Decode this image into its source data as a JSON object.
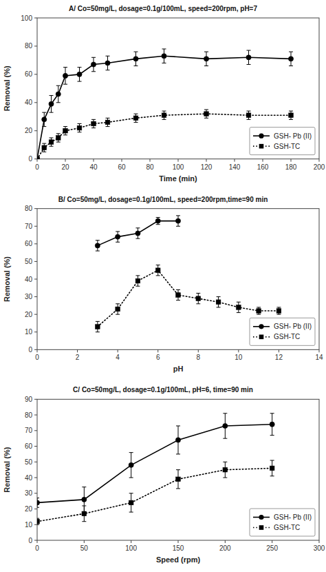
{
  "chart_data": [
    {
      "type": "line",
      "title": "A/ Co=50mg/L, dosage=0.1g/100mL, speed=200rpm, pH=7",
      "xlabel": "Time (min)",
      "ylabel": "Removal (%)",
      "xlim": [
        0,
        200
      ],
      "ylim": [
        0,
        100
      ],
      "xticks": [
        0,
        20,
        40,
        60,
        80,
        100,
        120,
        140,
        160,
        180,
        200
      ],
      "yticks": [
        0,
        20,
        40,
        60,
        80,
        100
      ],
      "grid": false,
      "legend": "lower right",
      "series": [
        {
          "name": "GSH- Pb (II)",
          "color": "#000000",
          "marker": "circle",
          "line_style": "solid",
          "x": [
            0,
            5,
            10,
            15,
            20,
            30,
            40,
            50,
            70,
            90,
            120,
            150,
            180
          ],
          "values": [
            0,
            28,
            39,
            46,
            59,
            60,
            67,
            68,
            71,
            73,
            71,
            72,
            71
          ],
          "errors": [
            0,
            5,
            6,
            6,
            6,
            5,
            5,
            5,
            5,
            5,
            5,
            5,
            5
          ]
        },
        {
          "name": "GSH-TC",
          "color": "#000000",
          "marker": "square",
          "line_style": "dotted",
          "x": [
            0,
            5,
            10,
            15,
            20,
            30,
            40,
            50,
            70,
            90,
            120,
            150,
            180
          ],
          "values": [
            0,
            8,
            12,
            15,
            20,
            22,
            25,
            26,
            29,
            31,
            32,
            31,
            31
          ],
          "errors": [
            0,
            3,
            3,
            3,
            3,
            3,
            3,
            3,
            3,
            3,
            3,
            3,
            3
          ]
        }
      ]
    },
    {
      "type": "line",
      "title": "B/ Co=50mg/L, dosage=0.1g/100mL, speed=200rpm,time=90 min",
      "xlabel": "pH",
      "ylabel": "Removal (%)",
      "xlim": [
        0,
        14
      ],
      "ylim": [
        0,
        80
      ],
      "xticks": [
        0,
        2,
        4,
        6,
        8,
        10,
        12,
        14
      ],
      "yticks": [
        0,
        10,
        20,
        30,
        40,
        50,
        60,
        70,
        80
      ],
      "grid": false,
      "legend": "lower right",
      "series": [
        {
          "name": "GSH- Pb (II)",
          "color": "#000000",
          "marker": "circle",
          "line_style": "solid",
          "x": [
            3,
            4,
            5,
            6,
            7
          ],
          "values": [
            59,
            64,
            66,
            73,
            73
          ],
          "errors": [
            3,
            3,
            3,
            2,
            3
          ]
        },
        {
          "name": "GSH-TC",
          "color": "#000000",
          "marker": "square",
          "line_style": "dotted",
          "x": [
            3,
            4,
            5,
            6,
            7,
            8,
            9,
            10,
            11,
            12
          ],
          "values": [
            13,
            23,
            39,
            45,
            31,
            29,
            27,
            24,
            22,
            22
          ],
          "errors": [
            3,
            3,
            3,
            3,
            3,
            3,
            3,
            3,
            2,
            2
          ]
        }
      ]
    },
    {
      "type": "line",
      "title": "C/ Co=50mg/L, dosage=0.1g/100mL, pH=6, time=90 min",
      "xlabel": "Speed (rpm)",
      "ylabel": "Removal (%)",
      "xlim": [
        0,
        300
      ],
      "ylim": [
        0,
        90
      ],
      "xticks": [
        0,
        50,
        100,
        150,
        200,
        250,
        300
      ],
      "yticks": [
        0,
        10,
        20,
        30,
        40,
        50,
        60,
        70,
        80,
        90
      ],
      "grid": false,
      "legend": "lower right",
      "series": [
        {
          "name": "GSH- Pb (II)",
          "color": "#000000",
          "marker": "circle",
          "line_style": "solid",
          "x": [
            0,
            50,
            100,
            150,
            200,
            250
          ],
          "values": [
            24,
            26,
            48,
            64,
            73,
            74
          ],
          "errors": [
            3,
            8,
            8,
            9,
            8,
            7
          ]
        },
        {
          "name": "GSH-TC",
          "color": "#000000",
          "marker": "square",
          "line_style": "dotted",
          "x": [
            0,
            50,
            100,
            150,
            200,
            250
          ],
          "values": [
            12,
            17,
            24,
            39,
            45,
            46
          ],
          "errors": [
            2,
            5,
            6,
            6,
            5,
            5
          ]
        }
      ]
    }
  ]
}
